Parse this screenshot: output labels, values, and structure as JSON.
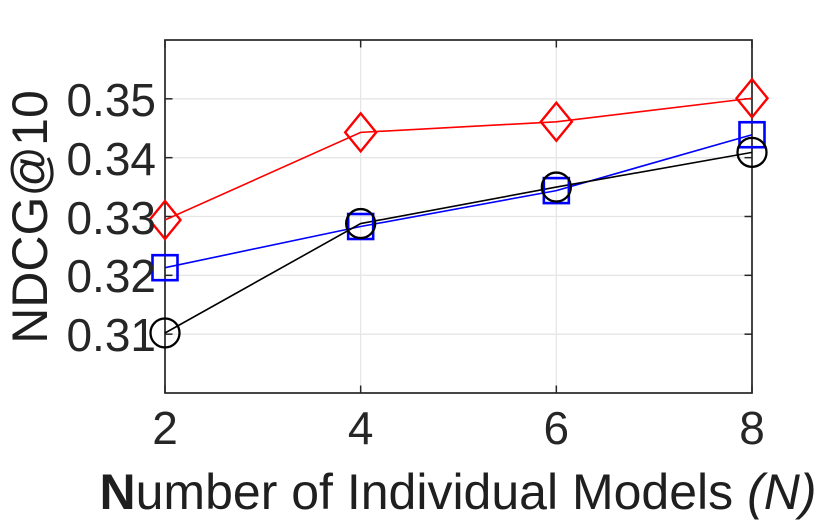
{
  "chart_data": {
    "type": "line",
    "title": "",
    "ylabel": "NDCG@10",
    "xlabel": "Number of Individual Models (N)",
    "xlabel_parts": {
      "bold": "N",
      "regular": "umber of Individual Models ",
      "italic": "(N)"
    },
    "x": [
      2,
      4,
      6,
      8
    ],
    "xticks": [
      2,
      4,
      6,
      8
    ],
    "xtick_labels": [
      "2",
      "4",
      "6",
      "8"
    ],
    "yticks": [
      0.31,
      0.32,
      0.33,
      0.34,
      0.35
    ],
    "ytick_labels": [
      "0.31",
      "0.32",
      "0.33",
      "0.34",
      "0.35"
    ],
    "xlim": [
      2,
      8
    ],
    "ylim": [
      0.3,
      0.36
    ],
    "grid": true,
    "legend": "none",
    "series": [
      {
        "name": "red-diamond",
        "marker": "diamond",
        "color": "#ff0000",
        "values": [
          0.3294,
          0.3443,
          0.3461,
          0.3501
        ]
      },
      {
        "name": "blue-square",
        "marker": "square",
        "color": "#0000ff",
        "values": [
          0.3213,
          0.3283,
          0.3344,
          0.3439
        ]
      },
      {
        "name": "black-circle",
        "marker": "circle",
        "color": "#000000",
        "values": [
          0.3102,
          0.3288,
          0.335,
          0.3409
        ]
      }
    ],
    "colors": {
      "grid": "#e6e6e6",
      "axis": "#262626",
      "text": "#262626",
      "label_text": "#1f1f1f",
      "background": "#ffffff"
    }
  }
}
